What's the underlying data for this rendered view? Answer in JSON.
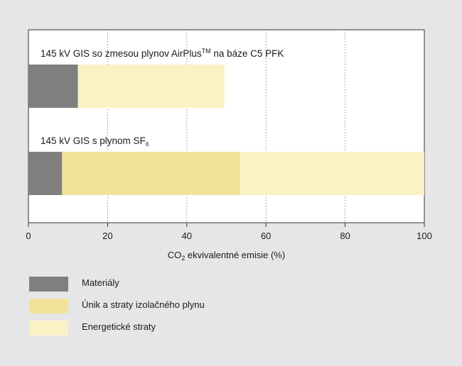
{
  "chart_data": {
    "type": "bar",
    "orientation": "horizontal",
    "stacked": true,
    "categories": [
      {
        "text": "145 kV GIS so zmesou plynov AirPlus",
        "sup": "TM",
        "after": " na báze C5 PFK"
      },
      {
        "text": "145 kV GIS s plynom SF",
        "sub": "6",
        "after": ""
      }
    ],
    "series": [
      {
        "name": "Materiály",
        "color": "#7f7f80",
        "values": [
          12.5,
          8.5
        ]
      },
      {
        "name": "Únik a straty izolačného plynu",
        "color": "#f2e39a",
        "values": [
          0,
          45
        ]
      },
      {
        "name": "Energetické straty",
        "color": "#fbf2c3",
        "values": [
          37,
          46.5
        ]
      }
    ],
    "xlim": [
      0,
      100
    ],
    "xticks": [
      0,
      20,
      40,
      60,
      80,
      100
    ],
    "xtick_labels": [
      "0",
      "20",
      "40",
      "60",
      "80",
      "100"
    ],
    "xlabel": {
      "prefix": "CO",
      "sub": "2",
      "suffix": " ekvivalentné emisie (%)"
    },
    "grid": "vertical-dotted",
    "legend_placement": "bottom-left"
  }
}
